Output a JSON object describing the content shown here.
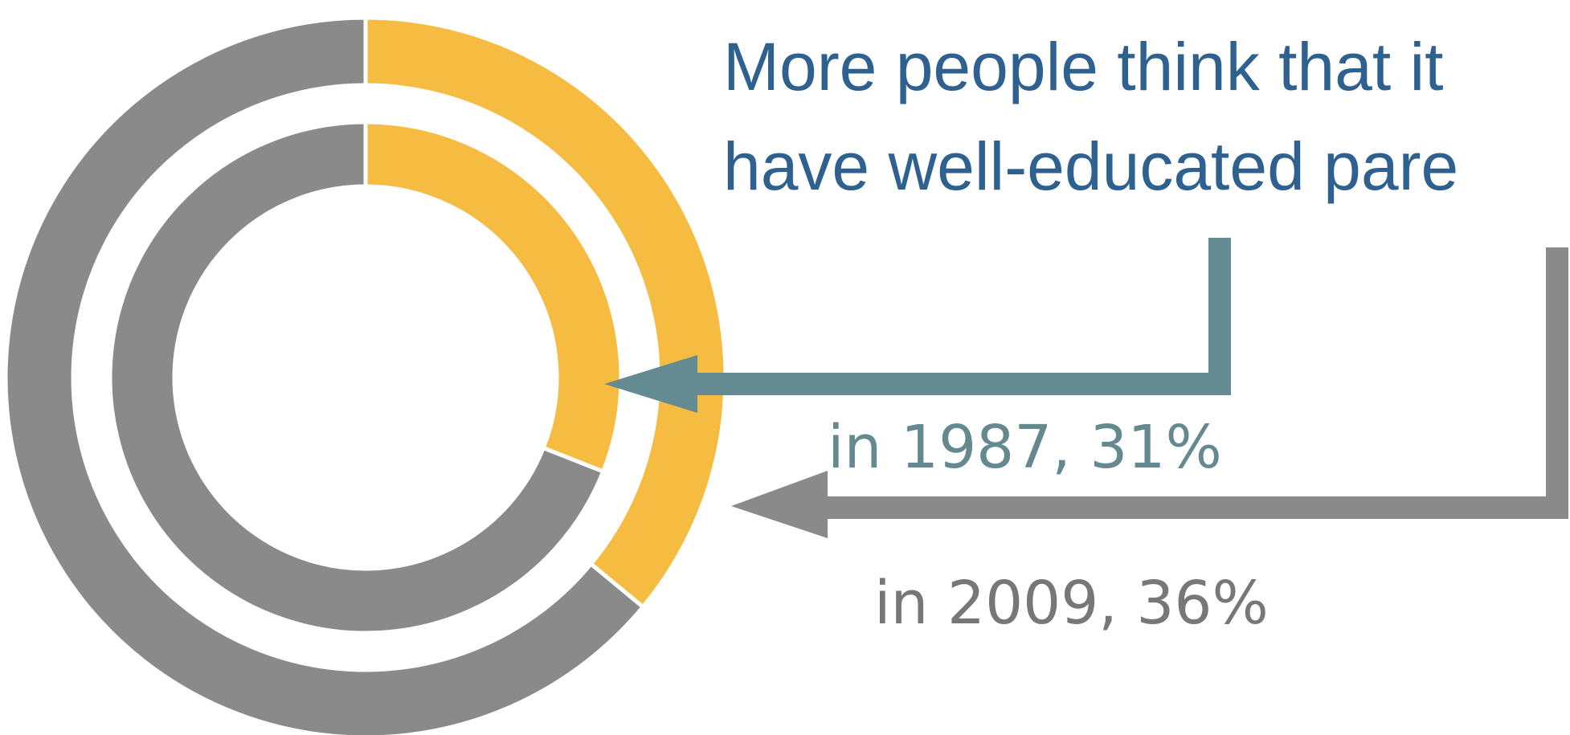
{
  "chart_data": {
    "type": "pie",
    "title_lines": [
      "More people think that it",
      "have well-educated pare"
    ],
    "series": [
      {
        "label": "in 2009, 36%",
        "year": 2009,
        "value": 36,
        "ring": "outer"
      },
      {
        "label": "in 1987, 31%",
        "year": 1987,
        "value": 31,
        "ring": "inner"
      }
    ],
    "colors": {
      "highlight": "#F6BB41",
      "rest": "#8A8A8A",
      "title": "#2E6190",
      "label_1987": "#64898F",
      "label_2009": "#777777",
      "arrow_1987": "#638B91",
      "arrow_2009": "#8A8A8A"
    }
  }
}
